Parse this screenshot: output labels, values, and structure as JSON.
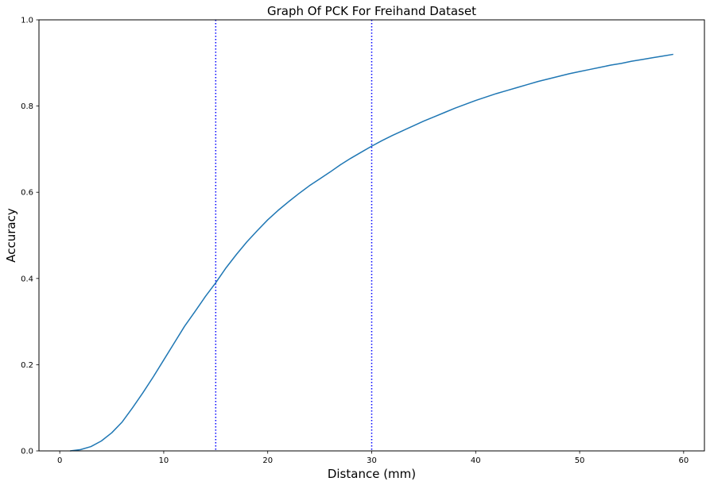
{
  "chart_data": {
    "type": "line",
    "title": "Graph Of PCK For Freihand Dataset",
    "xlabel": "Distance (mm)",
    "ylabel": "Accuracy",
    "xlim": [
      -2.0,
      62.0
    ],
    "ylim": [
      0.0,
      1.0
    ],
    "x_ticks": [
      0,
      10,
      20,
      30,
      40,
      50,
      60
    ],
    "x_tick_labels": [
      "0",
      "10",
      "20",
      "30",
      "40",
      "50",
      "60"
    ],
    "y_ticks": [
      0.0,
      0.2,
      0.4,
      0.6,
      0.8,
      1.0
    ],
    "y_tick_labels": [
      "0.0",
      "0.2",
      "0.4",
      "0.6",
      "0.8",
      "1.0"
    ],
    "grid": false,
    "series": [
      {
        "color": "#1f77b4",
        "x": [
          1,
          2,
          3,
          4,
          5,
          6,
          7,
          8,
          9,
          10,
          11,
          12,
          13,
          14,
          15,
          16,
          17,
          18,
          19,
          20,
          21,
          22,
          23,
          24,
          25,
          26,
          27,
          28,
          29,
          30,
          31,
          32,
          33,
          34,
          35,
          36,
          37,
          38,
          39,
          40,
          41,
          42,
          43,
          44,
          45,
          46,
          47,
          48,
          49,
          50,
          51,
          52,
          53,
          54,
          55,
          56,
          57,
          58,
          59
        ],
        "y": [
          0.0,
          0.003,
          0.01,
          0.023,
          0.042,
          0.067,
          0.1,
          0.135,
          0.172,
          0.211,
          0.25,
          0.289,
          0.323,
          0.358,
          0.39,
          0.425,
          0.456,
          0.485,
          0.511,
          0.536,
          0.558,
          0.578,
          0.597,
          0.615,
          0.631,
          0.647,
          0.664,
          0.679,
          0.693,
          0.707,
          0.72,
          0.732,
          0.743,
          0.754,
          0.765,
          0.775,
          0.785,
          0.795,
          0.804,
          0.813,
          0.821,
          0.829,
          0.836,
          0.843,
          0.85,
          0.857,
          0.863,
          0.869,
          0.875,
          0.88,
          0.885,
          0.89,
          0.895,
          0.899,
          0.904,
          0.908,
          0.912,
          0.916,
          0.92
        ]
      }
    ],
    "reference_lines": [
      {
        "axis": "x",
        "value": 15,
        "color": "#0000ff",
        "style": "dotted"
      },
      {
        "axis": "x",
        "value": 30,
        "color": "#0000ff",
        "style": "dotted"
      }
    ]
  }
}
